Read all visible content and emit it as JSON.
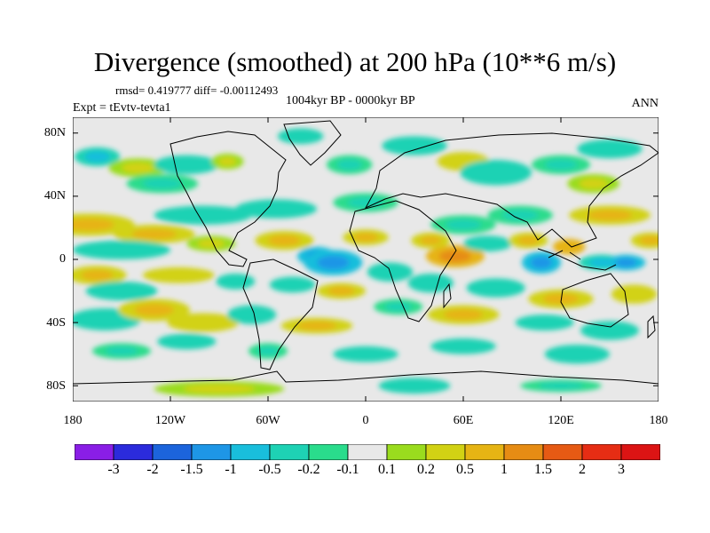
{
  "title": "Divergence (smoothed) at 200 hPa (10**6 m/s)",
  "stats": "rmsd= 0.419777 diff= -0.00112493",
  "period": "1004kyr BP - 0000kyr BP",
  "experiment": "Expt = tEvtv-tevta1",
  "season": "ANN",
  "lat_ticks": [
    "80N",
    "40N",
    "0",
    "40S",
    "80S"
  ],
  "lon_ticks": [
    "180",
    "120W",
    "60W",
    "0",
    "60E",
    "120E",
    "180"
  ],
  "colorbar": {
    "levels": [
      "-3",
      "-2",
      "-1.5",
      "-1",
      "-0.5",
      "-0.2",
      "-0.1",
      "0.1",
      "0.2",
      "0.5",
      "1",
      "1.5",
      "2",
      "3"
    ],
    "colors": [
      "#8a1ee6",
      "#2b2bdc",
      "#1c64dc",
      "#1e96e6",
      "#19bedc",
      "#1ed2b4",
      "#2adc8c",
      "#e8e8e8",
      "#9adc1e",
      "#d2d214",
      "#e6b414",
      "#e68c14",
      "#e65a14",
      "#e62d14",
      "#dc1414"
    ]
  },
  "chart_data": {
    "type": "heatmap",
    "title": "Divergence (smoothed) at 200 hPa (10**6 m/s)",
    "xlabel": "",
    "ylabel": "",
    "xlim": [
      -180,
      180
    ],
    "ylim": [
      -90,
      90
    ],
    "units": "10**6 m/s",
    "blobs": [
      {
        "lon": -165,
        "lat": 65,
        "a": 14,
        "b": 6,
        "v": -0.6
      },
      {
        "lon": -140,
        "lat": 58,
        "a": 18,
        "b": 6,
        "v": 0.3
      },
      {
        "lon": -125,
        "lat": 48,
        "a": 22,
        "b": 6,
        "v": -0.3
      },
      {
        "lon": -110,
        "lat": 60,
        "a": 20,
        "b": 6,
        "v": -0.4
      },
      {
        "lon": -85,
        "lat": 62,
        "a": 10,
        "b": 5,
        "v": 0.3
      },
      {
        "lon": -40,
        "lat": 78,
        "a": 14,
        "b": 5,
        "v": -0.4
      },
      {
        "lon": -10,
        "lat": 60,
        "a": 14,
        "b": 6,
        "v": -0.3
      },
      {
        "lon": 30,
        "lat": 72,
        "a": 20,
        "b": 6,
        "v": -0.5
      },
      {
        "lon": 60,
        "lat": 62,
        "a": 16,
        "b": 6,
        "v": 0.4
      },
      {
        "lon": 80,
        "lat": 55,
        "a": 22,
        "b": 8,
        "v": -0.4
      },
      {
        "lon": 120,
        "lat": 60,
        "a": 18,
        "b": 6,
        "v": -0.3
      },
      {
        "lon": 150,
        "lat": 70,
        "a": 20,
        "b": 6,
        "v": -0.5
      },
      {
        "lon": 140,
        "lat": 48,
        "a": 16,
        "b": 6,
        "v": 0.3
      },
      {
        "lon": -170,
        "lat": 22,
        "a": 28,
        "b": 7,
        "v": 0.7
      },
      {
        "lon": -130,
        "lat": 16,
        "a": 25,
        "b": 6,
        "v": 0.6
      },
      {
        "lon": -100,
        "lat": 28,
        "a": 30,
        "b": 6,
        "v": -0.4
      },
      {
        "lon": -55,
        "lat": 32,
        "a": 25,
        "b": 6,
        "v": -0.5
      },
      {
        "lon": 0,
        "lat": 36,
        "a": 20,
        "b": 6,
        "v": -0.3
      },
      {
        "lon": 60,
        "lat": 22,
        "a": 20,
        "b": 6,
        "v": -0.3
      },
      {
        "lon": 95,
        "lat": 28,
        "a": 20,
        "b": 6,
        "v": -0.3
      },
      {
        "lon": 150,
        "lat": 28,
        "a": 25,
        "b": 6,
        "v": 0.5
      },
      {
        "lon": -150,
        "lat": 6,
        "a": 30,
        "b": 6,
        "v": -0.5
      },
      {
        "lon": -95,
        "lat": 10,
        "a": 15,
        "b": 5,
        "v": 0.3
      },
      {
        "lon": -50,
        "lat": 12,
        "a": 18,
        "b": 6,
        "v": 0.8
      },
      {
        "lon": -30,
        "lat": 2,
        "a": 12,
        "b": 6,
        "v": -1.2
      },
      {
        "lon": -20,
        "lat": -2,
        "a": 18,
        "b": 8,
        "v": -1.3
      },
      {
        "lon": 0,
        "lat": 14,
        "a": 14,
        "b": 5,
        "v": 0.5
      },
      {
        "lon": 15,
        "lat": -8,
        "a": 14,
        "b": 6,
        "v": -0.4
      },
      {
        "lon": 40,
        "lat": 12,
        "a": 12,
        "b": 5,
        "v": 0.8
      },
      {
        "lon": 55,
        "lat": 2,
        "a": 18,
        "b": 7,
        "v": 1.4
      },
      {
        "lon": 75,
        "lat": 10,
        "a": 15,
        "b": 5,
        "v": -0.5
      },
      {
        "lon": 100,
        "lat": 12,
        "a": 12,
        "b": 5,
        "v": 0.8
      },
      {
        "lon": 108,
        "lat": -2,
        "a": 12,
        "b": 7,
        "v": -1.2
      },
      {
        "lon": 125,
        "lat": 8,
        "a": 10,
        "b": 5,
        "v": 0.9
      },
      {
        "lon": 145,
        "lat": -2,
        "a": 14,
        "b": 5,
        "v": -0.8
      },
      {
        "lon": 160,
        "lat": -2,
        "a": 12,
        "b": 5,
        "v": -1.4
      },
      {
        "lon": 175,
        "lat": 12,
        "a": 12,
        "b": 5,
        "v": 0.6
      },
      {
        "lon": -165,
        "lat": -10,
        "a": 18,
        "b": 6,
        "v": 0.7
      },
      {
        "lon": -150,
        "lat": -20,
        "a": 22,
        "b": 6,
        "v": -0.5
      },
      {
        "lon": -115,
        "lat": -10,
        "a": 22,
        "b": 5,
        "v": 0.4
      },
      {
        "lon": -80,
        "lat": -14,
        "a": 12,
        "b": 5,
        "v": -0.4
      },
      {
        "lon": -45,
        "lat": -16,
        "a": 14,
        "b": 5,
        "v": -0.5
      },
      {
        "lon": -15,
        "lat": -20,
        "a": 15,
        "b": 5,
        "v": 0.5
      },
      {
        "lon": 40,
        "lat": -15,
        "a": 14,
        "b": 6,
        "v": -0.4
      },
      {
        "lon": 80,
        "lat": -18,
        "a": 18,
        "b": 6,
        "v": -0.5
      },
      {
        "lon": 120,
        "lat": -25,
        "a": 20,
        "b": 6,
        "v": 0.6
      },
      {
        "lon": 165,
        "lat": -22,
        "a": 14,
        "b": 6,
        "v": 0.4
      },
      {
        "lon": -160,
        "lat": -38,
        "a": 22,
        "b": 7,
        "v": -0.5
      },
      {
        "lon": -130,
        "lat": -32,
        "a": 22,
        "b": 7,
        "v": 0.8
      },
      {
        "lon": -100,
        "lat": -40,
        "a": 22,
        "b": 6,
        "v": 0.4
      },
      {
        "lon": -70,
        "lat": -35,
        "a": 15,
        "b": 6,
        "v": -0.5
      },
      {
        "lon": -30,
        "lat": -42,
        "a": 22,
        "b": 5,
        "v": 0.5
      },
      {
        "lon": 20,
        "lat": -30,
        "a": 15,
        "b": 5,
        "v": -0.3
      },
      {
        "lon": 60,
        "lat": -35,
        "a": 22,
        "b": 6,
        "v": 0.5
      },
      {
        "lon": 110,
        "lat": -40,
        "a": 18,
        "b": 5,
        "v": -0.4
      },
      {
        "lon": 150,
        "lat": -45,
        "a": 18,
        "b": 6,
        "v": -0.5
      },
      {
        "lon": -150,
        "lat": -58,
        "a": 18,
        "b": 5,
        "v": -0.3
      },
      {
        "lon": -110,
        "lat": -52,
        "a": 18,
        "b": 5,
        "v": -0.5
      },
      {
        "lon": -60,
        "lat": -58,
        "a": 12,
        "b": 5,
        "v": -0.3
      },
      {
        "lon": 0,
        "lat": -60,
        "a": 20,
        "b": 5,
        "v": -0.4
      },
      {
        "lon": 60,
        "lat": -55,
        "a": 20,
        "b": 5,
        "v": -0.4
      },
      {
        "lon": 130,
        "lat": -60,
        "a": 20,
        "b": 6,
        "v": -0.4
      },
      {
        "lon": -90,
        "lat": -82,
        "a": 40,
        "b": 5,
        "v": 0.3
      },
      {
        "lon": 30,
        "lat": -80,
        "a": 22,
        "b": 5,
        "v": -0.4
      },
      {
        "lon": 120,
        "lat": -80,
        "a": 25,
        "b": 4,
        "v": -0.3
      }
    ]
  }
}
